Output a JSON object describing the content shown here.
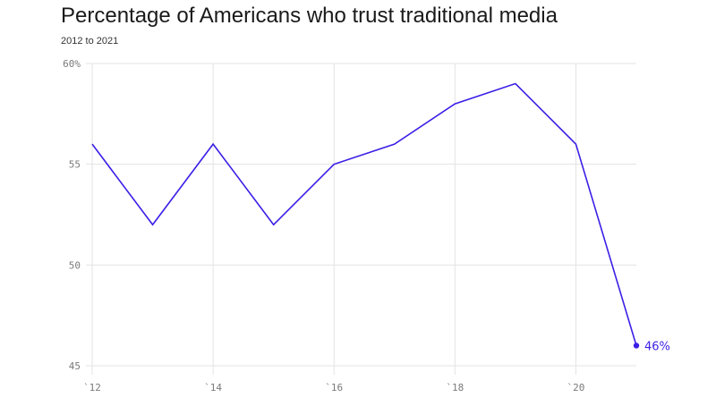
{
  "title": "Percentage of Americans who trust traditional media",
  "subtitle": "2012 to 2021",
  "colors": {
    "line": "#3a1fe6",
    "grid": "#e3e3e3",
    "text": "#1a1a1a",
    "tick": "#7a7a7a"
  },
  "chart_data": {
    "type": "line",
    "title": "Percentage of Americans who trust traditional media",
    "subtitle": "2012 to 2021",
    "x": [
      2012,
      2013,
      2014,
      2015,
      2016,
      2017,
      2018,
      2019,
      2020,
      2021
    ],
    "series": [
      {
        "values": [
          56,
          52,
          56,
          52,
          55,
          56,
          58,
          59,
          56,
          46
        ]
      }
    ],
    "ylim": [
      45,
      60
    ],
    "xlim": [
      2012,
      2021
    ],
    "y_ticks": [
      60,
      55,
      50,
      45
    ],
    "y_tick_labels": [
      "60%",
      "55",
      "50",
      "45"
    ],
    "x_ticks": [
      2012,
      2014,
      2016,
      2018,
      2020
    ],
    "x_tick_labels": [
      "`12",
      "`14",
      "`16",
      "`18",
      "`20"
    ],
    "grid": true,
    "end_label": "46%"
  }
}
